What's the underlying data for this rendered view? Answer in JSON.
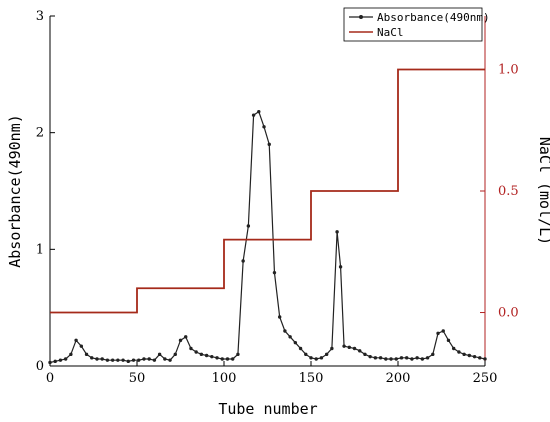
{
  "chart_data": {
    "type": "line",
    "xlabel": "Tube number",
    "ylabel_left": "Absorbance(490nm)",
    "ylabel_right": "NaCl (mol/L)",
    "xlim": [
      0,
      250
    ],
    "ylim_left": [
      0,
      3
    ],
    "ylim_right": [
      -0.22,
      1.22
    ],
    "x_ticks": [
      0,
      50,
      100,
      150,
      200,
      250
    ],
    "y_left_ticks": [
      0,
      1,
      2,
      3
    ],
    "y_right_ticks": [
      "0.0",
      "0.5",
      "1.0"
    ],
    "grid": false,
    "legend_position": "top-right",
    "colors": {
      "absorbance": "#222222",
      "nacl": "#a52a1a",
      "right_axis": "#b22222"
    },
    "series": [
      {
        "name": "Absorbance(490nm)",
        "axis": "left",
        "marker": "dot",
        "x": [
          0,
          3,
          6,
          9,
          12,
          15,
          18,
          21,
          24,
          27,
          30,
          33,
          36,
          39,
          42,
          45,
          48,
          51,
          54,
          57,
          60,
          63,
          66,
          69,
          72,
          75,
          78,
          81,
          84,
          87,
          90,
          93,
          96,
          99,
          102,
          105,
          108,
          111,
          114,
          117,
          120,
          123,
          126,
          129,
          132,
          135,
          138,
          141,
          144,
          147,
          150,
          153,
          156,
          159,
          162,
          165,
          167,
          169,
          172,
          175,
          178,
          181,
          184,
          187,
          190,
          193,
          196,
          199,
          202,
          205,
          208,
          211,
          214,
          217,
          220,
          223,
          226,
          229,
          232,
          235,
          238,
          241,
          244,
          247,
          250
        ],
        "values": [
          0.03,
          0.04,
          0.05,
          0.06,
          0.1,
          0.22,
          0.17,
          0.1,
          0.07,
          0.06,
          0.06,
          0.05,
          0.05,
          0.05,
          0.05,
          0.04,
          0.05,
          0.05,
          0.06,
          0.06,
          0.05,
          0.1,
          0.06,
          0.05,
          0.1,
          0.22,
          0.25,
          0.15,
          0.12,
          0.1,
          0.09,
          0.08,
          0.07,
          0.06,
          0.06,
          0.06,
          0.1,
          0.9,
          1.2,
          2.15,
          2.18,
          2.05,
          1.9,
          0.8,
          0.42,
          0.3,
          0.25,
          0.2,
          0.15,
          0.1,
          0.07,
          0.06,
          0.07,
          0.1,
          0.15,
          1.15,
          0.85,
          0.17,
          0.16,
          0.15,
          0.13,
          0.1,
          0.08,
          0.07,
          0.07,
          0.06,
          0.06,
          0.06,
          0.07,
          0.07,
          0.06,
          0.07,
          0.06,
          0.07,
          0.1,
          0.28,
          0.3,
          0.22,
          0.15,
          0.12,
          0.1,
          0.09,
          0.08,
          0.07,
          0.06
        ]
      },
      {
        "name": "NaCl",
        "axis": "right",
        "marker": "none",
        "x": [
          0,
          50,
          50,
          100,
          100,
          150,
          150,
          200,
          200,
          250
        ],
        "values": [
          0,
          0,
          0.1,
          0.1,
          0.3,
          0.3,
          0.5,
          0.5,
          1.0,
          1.0
        ]
      }
    ]
  }
}
